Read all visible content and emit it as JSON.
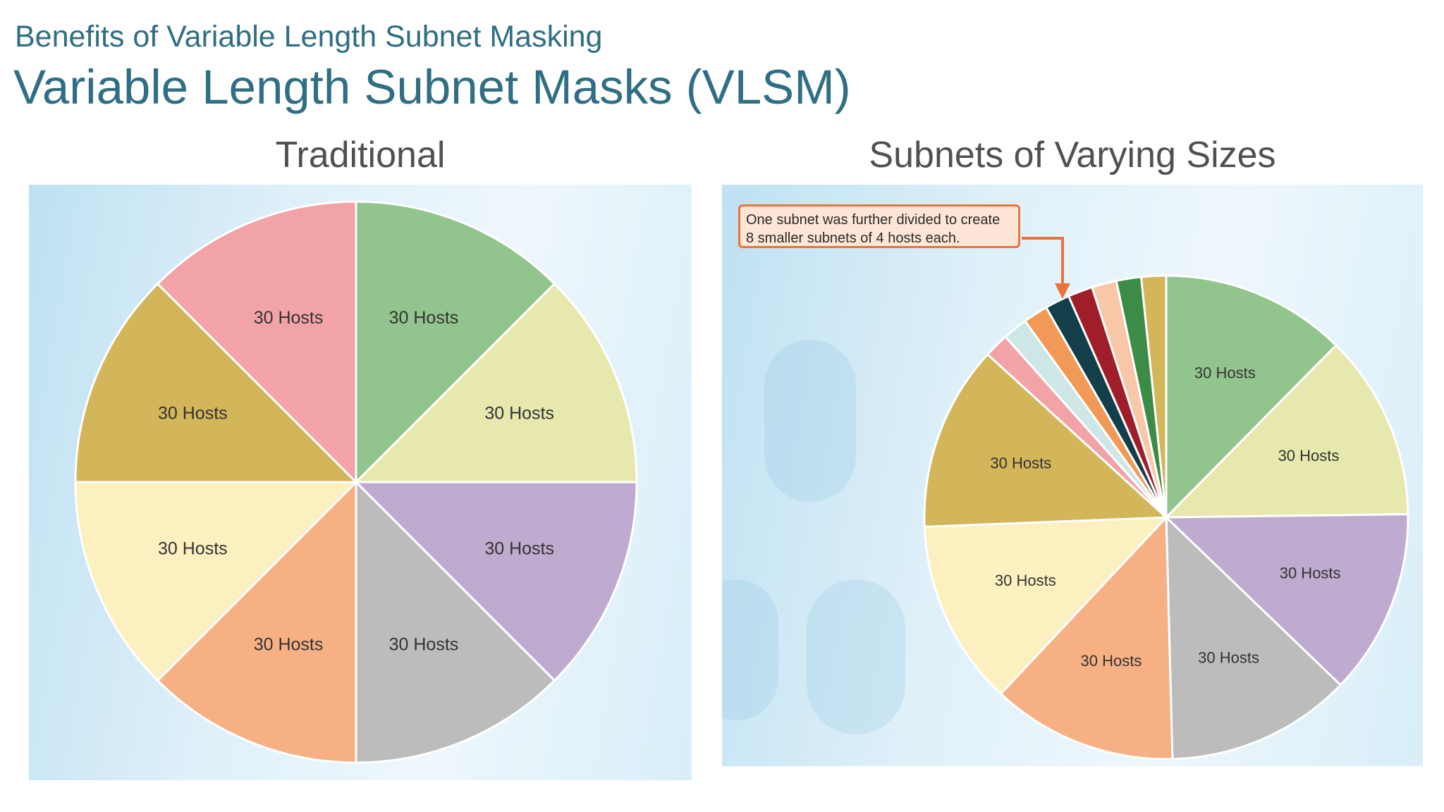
{
  "header": {
    "subtitle": "Benefits of Variable Length Subnet Masking",
    "title": "Variable Length Subnet Masks (VLSM)"
  },
  "chart_data": [
    {
      "type": "pie",
      "title": "Traditional",
      "start_angle_deg": 0,
      "direction": "clockwise",
      "slices": [
        {
          "label": "30 Hosts",
          "value": 30,
          "color": "#92c48e"
        },
        {
          "label": "30 Hosts",
          "value": 30,
          "color": "#e6e8ae"
        },
        {
          "label": "30 Hosts",
          "value": 30,
          "color": "#bfabcf"
        },
        {
          "label": "30 Hosts",
          "value": 30,
          "color": "#bcbcbc"
        },
        {
          "label": "30 Hosts",
          "value": 30,
          "color": "#f7b084"
        },
        {
          "label": "30 Hosts",
          "value": 30,
          "color": "#fdf0c0"
        },
        {
          "label": "30 Hosts",
          "value": 30,
          "color": "#d3b55a"
        },
        {
          "label": "30 Hosts",
          "value": 30,
          "color": "#f2a3a8"
        }
      ]
    },
    {
      "type": "pie",
      "title": "Subnets of Varying Sizes",
      "start_angle_deg": 0,
      "direction": "clockwise",
      "annotation": {
        "line1": "One subnet was further divided to create",
        "line2": "8 smaller subnets of 4 hosts each."
      },
      "slices": [
        {
          "label": "30 Hosts",
          "value": 30,
          "color": "#92c48e"
        },
        {
          "label": "30 Hosts",
          "value": 30,
          "color": "#e6e8ae"
        },
        {
          "label": "30 Hosts",
          "value": 30,
          "color": "#bfabcf"
        },
        {
          "label": "30 Hosts",
          "value": 30,
          "color": "#bcbcbc"
        },
        {
          "label": "30 Hosts",
          "value": 30,
          "color": "#f7b084"
        },
        {
          "label": "30 Hosts",
          "value": 30,
          "color": "#fdf0c0"
        },
        {
          "label": "30 Hosts",
          "value": 30,
          "color": "#d3b55a"
        },
        {
          "label": "",
          "value": 4,
          "color": "#f2a3a8"
        },
        {
          "label": "",
          "value": 4,
          "color": "#cde7e6"
        },
        {
          "label": "",
          "value": 4,
          "color": "#f19a57"
        },
        {
          "label": "",
          "value": 4,
          "color": "#133f4a"
        },
        {
          "label": "",
          "value": 4,
          "color": "#a01d2a"
        },
        {
          "label": "",
          "value": 4,
          "color": "#f8c7a8"
        },
        {
          "label": "",
          "value": 4,
          "color": "#3c8b47"
        },
        {
          "label": "",
          "value": 4,
          "color": "#d3b55a"
        }
      ]
    }
  ],
  "colors": {
    "heading_blue": "#2f6e83",
    "callout_border": "#e8743b",
    "callout_fill": "#fde6d6"
  }
}
